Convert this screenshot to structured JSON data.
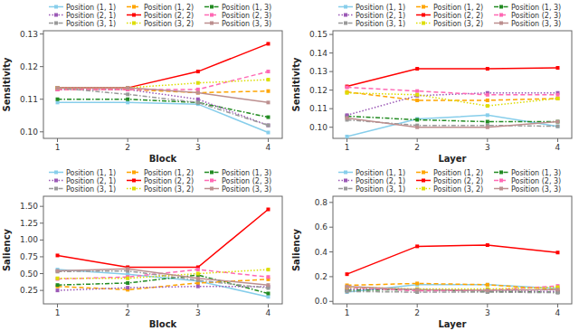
{
  "chart_data": [
    {
      "type": "line",
      "x": [
        1,
        2,
        3,
        4
      ],
      "xlabel": "Block",
      "ylabel": "Sensitivity",
      "xlim": [
        0.8,
        4.2
      ],
      "xticks": [
        1,
        2,
        3,
        4
      ],
      "ylim": [
        0.098,
        0.131
      ],
      "yticks": [
        {
          "value": 0.1,
          "label": "0.10"
        },
        0.11,
        0.12,
        0.13
      ],
      "grid": false,
      "legend": "upper right",
      "series": [
        {
          "name": "Position (1, 1)",
          "color": "#87CEEB",
          "line_style": "solid",
          "marker": "square",
          "values": [
            0.109,
            0.109,
            0.1085,
            0.0998
          ]
        },
        {
          "name": "Position (1, 2)",
          "color": "#FFA500",
          "line_style": "dashed",
          "marker": "square",
          "values": [
            0.113,
            0.113,
            0.112,
            0.1125
          ]
        },
        {
          "name": "Position (1, 3)",
          "color": "#228B22",
          "line_style": "dashdot",
          "marker": "square",
          "values": [
            0.11,
            0.11,
            0.109,
            0.1045
          ]
        },
        {
          "name": "Position (2, 1)",
          "color": "#9B59B6",
          "line_style": "dotted",
          "marker": "square",
          "values": [
            0.113,
            0.113,
            0.11,
            0.102
          ]
        },
        {
          "name": "Position (2, 2)",
          "color": "#FF0000",
          "line_style": "solid",
          "marker": "square",
          "values": [
            0.1135,
            0.1135,
            0.1185,
            0.127
          ]
        },
        {
          "name": "Position (2, 3)",
          "color": "#FF69B4",
          "line_style": "dashed",
          "marker": "square",
          "values": [
            0.113,
            0.113,
            0.113,
            0.1185
          ]
        },
        {
          "name": "Position (3, 1)",
          "color": "#999999",
          "line_style": "dashdot",
          "marker": "square",
          "values": [
            0.1135,
            0.1115,
            0.109,
            0.102
          ]
        },
        {
          "name": "Position (3, 2)",
          "color": "#DDDD00",
          "line_style": "dotted",
          "marker": "square",
          "values": [
            0.1135,
            0.1135,
            0.115,
            0.116
          ]
        },
        {
          "name": "Position (3, 3)",
          "color": "#BC8F8F",
          "line_style": "solid",
          "marker": "square",
          "values": [
            0.1135,
            0.1135,
            0.112,
            0.109
          ]
        }
      ]
    },
    {
      "type": "line",
      "x": [
        1,
        2,
        3,
        4
      ],
      "xlabel": "Layer",
      "ylabel": "Sensitivity",
      "xlim": [
        0.8,
        4.2
      ],
      "xticks": [
        1,
        2,
        3,
        4
      ],
      "ylim": [
        0.094,
        0.152
      ],
      "yticks": [
        {
          "value": 0.1,
          "label": "0.10"
        },
        0.11,
        0.12,
        0.13,
        0.14,
        0.15
      ],
      "grid": false,
      "legend": "upper right",
      "series": [
        {
          "name": "Position (1, 1)",
          "color": "#87CEEB",
          "line_style": "solid",
          "marker": "square",
          "values": [
            0.095,
            0.1045,
            0.1065,
            0.1005
          ]
        },
        {
          "name": "Position (1, 2)",
          "color": "#FFA500",
          "line_style": "dashed",
          "marker": "square",
          "values": [
            0.119,
            0.1145,
            0.1145,
            0.1155
          ]
        },
        {
          "name": "Position (1, 3)",
          "color": "#228B22",
          "line_style": "dashdot",
          "marker": "square",
          "values": [
            0.106,
            0.104,
            0.103,
            0.103
          ]
        },
        {
          "name": "Position (2, 1)",
          "color": "#9B59B6",
          "line_style": "dotted",
          "marker": "square",
          "values": [
            0.1065,
            0.117,
            0.1185,
            0.1185
          ]
        },
        {
          "name": "Position (2, 2)",
          "color": "#FF0000",
          "line_style": "solid",
          "marker": "square",
          "values": [
            0.122,
            0.1315,
            0.1315,
            0.132
          ]
        },
        {
          "name": "Position (2, 3)",
          "color": "#FF69B4",
          "line_style": "dashed",
          "marker": "square",
          "values": [
            0.1215,
            0.1195,
            0.1175,
            0.1175
          ]
        },
        {
          "name": "Position (3, 1)",
          "color": "#999999",
          "line_style": "dashdot",
          "marker": "square",
          "values": [
            0.104,
            0.101,
            0.101,
            0.1005
          ]
        },
        {
          "name": "Position (3, 2)",
          "color": "#DDDD00",
          "line_style": "dotted",
          "marker": "square",
          "values": [
            0.1185,
            0.1175,
            0.1115,
            0.1155
          ]
        },
        {
          "name": "Position (3, 3)",
          "color": "#BC8F8F",
          "line_style": "solid",
          "marker": "square",
          "values": [
            0.105,
            0.1,
            0.1,
            0.103
          ]
        }
      ]
    },
    {
      "type": "line",
      "x": [
        1,
        2,
        3,
        4
      ],
      "xlabel": "Block",
      "ylabel": "Saliency",
      "xlim": [
        0.8,
        4.2
      ],
      "xticks": [
        1,
        2,
        3,
        4
      ],
      "ylim": [
        0.05,
        1.65
      ],
      "yticks": [
        0.25,
        {
          "value": 0.5,
          "label": "0.50"
        },
        0.75,
        {
          "value": 1.0,
          "label": "1.00"
        },
        1.25,
        {
          "value": 1.5,
          "label": "1.50"
        }
      ],
      "grid": false,
      "legend": "upper right",
      "series": [
        {
          "name": "Position (1, 1)",
          "color": "#87CEEB",
          "line_style": "solid",
          "marker": "square",
          "values": [
            0.56,
            0.49,
            0.39,
            0.155
          ]
        },
        {
          "name": "Position (1, 2)",
          "color": "#FFA500",
          "line_style": "dashed",
          "marker": "square",
          "values": [
            0.31,
            0.26,
            0.36,
            0.415
          ]
        },
        {
          "name": "Position (1, 3)",
          "color": "#228B22",
          "line_style": "dashdot",
          "marker": "square",
          "values": [
            0.33,
            0.36,
            0.48,
            0.205
          ]
        },
        {
          "name": "Position (2, 1)",
          "color": "#9B59B6",
          "line_style": "dotted",
          "marker": "square",
          "values": [
            0.25,
            0.29,
            0.31,
            0.305
          ]
        },
        {
          "name": "Position (2, 2)",
          "color": "#FF0000",
          "line_style": "solid",
          "marker": "square",
          "values": [
            0.77,
            0.595,
            0.595,
            1.455
          ]
        },
        {
          "name": "Position (2, 3)",
          "color": "#FF69B4",
          "line_style": "dashed",
          "marker": "square",
          "values": [
            0.42,
            0.45,
            0.56,
            0.45
          ]
        },
        {
          "name": "Position (3, 1)",
          "color": "#999999",
          "line_style": "dashdot",
          "marker": "square",
          "values": [
            0.53,
            0.54,
            0.4,
            0.285
          ]
        },
        {
          "name": "Position (3, 2)",
          "color": "#DDDD00",
          "line_style": "dotted",
          "marker": "square",
          "values": [
            0.43,
            0.43,
            0.5,
            0.56
          ]
        },
        {
          "name": "Position (3, 3)",
          "color": "#BC8F8F",
          "line_style": "solid",
          "marker": "square",
          "values": [
            0.54,
            0.57,
            0.43,
            0.33
          ]
        }
      ]
    },
    {
      "type": "line",
      "x": [
        1,
        2,
        3,
        4
      ],
      "xlabel": "Layer",
      "ylabel": "Saliency",
      "xlim": [
        0.8,
        4.2
      ],
      "xticks": [
        1,
        2,
        3,
        4
      ],
      "ylim": [
        -0.02,
        0.85
      ],
      "yticks": [
        {
          "value": 0.0,
          "label": "0.0"
        },
        0.2,
        0.4,
        0.6,
        0.8
      ],
      "grid": false,
      "legend": "upper right",
      "series": [
        {
          "name": "Position (1, 1)",
          "color": "#87CEEB",
          "line_style": "solid",
          "marker": "square",
          "values": [
            0.075,
            0.135,
            0.135,
            0.105
          ]
        },
        {
          "name": "Position (1, 2)",
          "color": "#FFA500",
          "line_style": "dashed",
          "marker": "square",
          "values": [
            0.13,
            0.145,
            0.135,
            0.095
          ]
        },
        {
          "name": "Position (1, 3)",
          "color": "#228B22",
          "line_style": "dashdot",
          "marker": "square",
          "values": [
            0.09,
            0.095,
            0.08,
            0.075
          ]
        },
        {
          "name": "Position (2, 1)",
          "color": "#9B59B6",
          "line_style": "dotted",
          "marker": "square",
          "values": [
            0.1,
            0.095,
            0.085,
            0.08
          ]
        },
        {
          "name": "Position (2, 2)",
          "color": "#FF0000",
          "line_style": "solid",
          "marker": "square",
          "values": [
            0.22,
            0.445,
            0.455,
            0.395
          ]
        },
        {
          "name": "Position (2, 3)",
          "color": "#FF69B4",
          "line_style": "dashed",
          "marker": "square",
          "values": [
            0.115,
            0.085,
            0.09,
            0.125
          ]
        },
        {
          "name": "Position (3, 1)",
          "color": "#999999",
          "line_style": "dashdot",
          "marker": "square",
          "values": [
            0.08,
            0.075,
            0.075,
            0.07
          ]
        },
        {
          "name": "Position (3, 2)",
          "color": "#DDDD00",
          "line_style": "dotted",
          "marker": "square",
          "values": [
            0.115,
            0.1,
            0.1,
            0.115
          ]
        },
        {
          "name": "Position (3, 3)",
          "color": "#BC8F8F",
          "line_style": "solid",
          "marker": "square",
          "values": [
            0.12,
            0.095,
            0.09,
            0.095
          ]
        }
      ]
    }
  ]
}
